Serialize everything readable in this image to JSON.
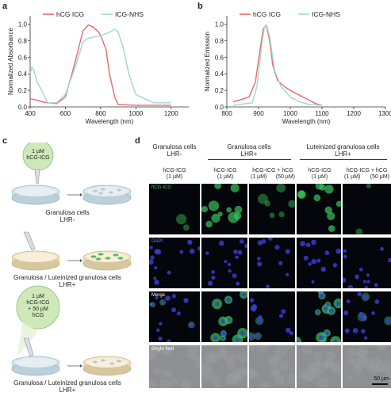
{
  "panels": {
    "a": "a",
    "b": "b",
    "c": "c",
    "d": "d"
  },
  "colors": {
    "hcg": "#e8686b",
    "icg_nhs": "#9fd7cc",
    "fluor": "#39c25a",
    "dapi": "#3b3bd0"
  },
  "chart_data": [
    {
      "type": "line",
      "xlabel": "Wavelength (nm)",
      "ylabel": "Normalized Absorbance",
      "xlim": [
        400,
        1300
      ],
      "ylim": [
        0,
        1.1
      ],
      "xticks": [
        400,
        600,
        800,
        1000,
        1200
      ],
      "yticks": [
        0.0,
        0.2,
        0.4,
        0.6,
        0.8,
        1.0
      ],
      "legend": "top",
      "series": [
        {
          "name": "hCG ICG",
          "x": [
            400,
            420,
            440,
            470,
            500,
            550,
            600,
            650,
            700,
            730,
            760,
            790,
            800,
            830,
            850,
            880,
            900,
            1000,
            1200
          ],
          "y": [
            0.1,
            0.09,
            0.08,
            0.06,
            0.05,
            0.04,
            0.12,
            0.5,
            0.92,
            0.99,
            0.96,
            0.9,
            0.86,
            0.7,
            0.4,
            0.12,
            0.03,
            0.02,
            0.02
          ]
        },
        {
          "name": "ICG-NHS",
          "x": [
            400,
            410,
            420,
            440,
            470,
            500,
            550,
            600,
            650,
            700,
            720,
            750,
            800,
            850,
            880,
            900,
            930,
            960,
            1000,
            1100,
            1200
          ],
          "y": [
            0.4,
            0.48,
            0.45,
            0.3,
            0.18,
            0.05,
            0.05,
            0.15,
            0.45,
            0.78,
            0.82,
            0.84,
            0.86,
            0.9,
            0.94,
            0.9,
            0.7,
            0.4,
            0.15,
            0.05,
            0.05
          ]
        }
      ]
    },
    {
      "type": "line",
      "xlabel": "Wavelength (nm)",
      "ylabel": "Normalized Emission",
      "xlim": [
        800,
        1300
      ],
      "ylim": [
        0,
        1.1
      ],
      "xticks": [
        800,
        900,
        1000,
        1100,
        1200,
        1300
      ],
      "yticks": [
        0.0,
        0.2,
        0.4,
        0.6,
        0.8,
        1.0
      ],
      "legend": "top",
      "series": [
        {
          "name": "hCG ICG",
          "x": [
            820,
            870,
            890,
            905,
            915,
            925,
            935,
            945,
            960,
            980,
            1000,
            1030,
            1060,
            1080,
            1100
          ],
          "y": [
            0.06,
            0.12,
            0.3,
            0.7,
            0.95,
            0.98,
            0.8,
            0.5,
            0.32,
            0.25,
            0.2,
            0.14,
            0.08,
            0.04,
            0.02
          ]
        },
        {
          "name": "ICG-NHS",
          "x": [
            820,
            880,
            895,
            910,
            918,
            925,
            935,
            950,
            970,
            1000,
            1030,
            1060,
            1100
          ],
          "y": [
            0.02,
            0.05,
            0.25,
            0.75,
            0.96,
            0.99,
            0.85,
            0.45,
            0.25,
            0.12,
            0.06,
            0.03,
            0.02
          ]
        }
      ]
    }
  ],
  "schematic": {
    "bubble1": [
      "1 µM",
      "hCG-ICG"
    ],
    "label1": [
      "Granulosa cells",
      "LHR-"
    ],
    "label2": [
      "Granulosa / Luteinized granulosa cells",
      "LHR+"
    ],
    "bubble2": [
      "1 µM",
      "hCG-ICG",
      "+ 50 µM",
      "hCG"
    ],
    "label3": [
      "Granulosa / Luteinized granulosa cells",
      "LHR+"
    ]
  },
  "micro": {
    "groups": [
      {
        "l1": "Granulosa cells",
        "l2": "LHR-"
      },
      {
        "l1": "Granulosa cells",
        "l2": "LHR+"
      },
      {
        "l1": "Luteinized granulosa cells",
        "l2": "LHR+"
      }
    ],
    "cols": [
      {
        "a": "hCG-ICG",
        "b": "(1 µM)",
        "c": ""
      },
      {
        "a": "hCG-ICG",
        "b": "(1 µM)",
        "c": ""
      },
      {
        "a": "hCG-ICG + hCG",
        "b": "(1 µM)",
        "c": "(50 µM)"
      },
      {
        "a": "hCG-ICG",
        "b": "(1 µM)",
        "c": ""
      },
      {
        "a": "hCG-ICG + hCG",
        "b": "(1 µM)",
        "c": "(50 µM)"
      }
    ],
    "rows": [
      "hCG-ICG",
      "DAPI",
      "Merge",
      "Bright field"
    ],
    "scalebar": "50 µm"
  }
}
